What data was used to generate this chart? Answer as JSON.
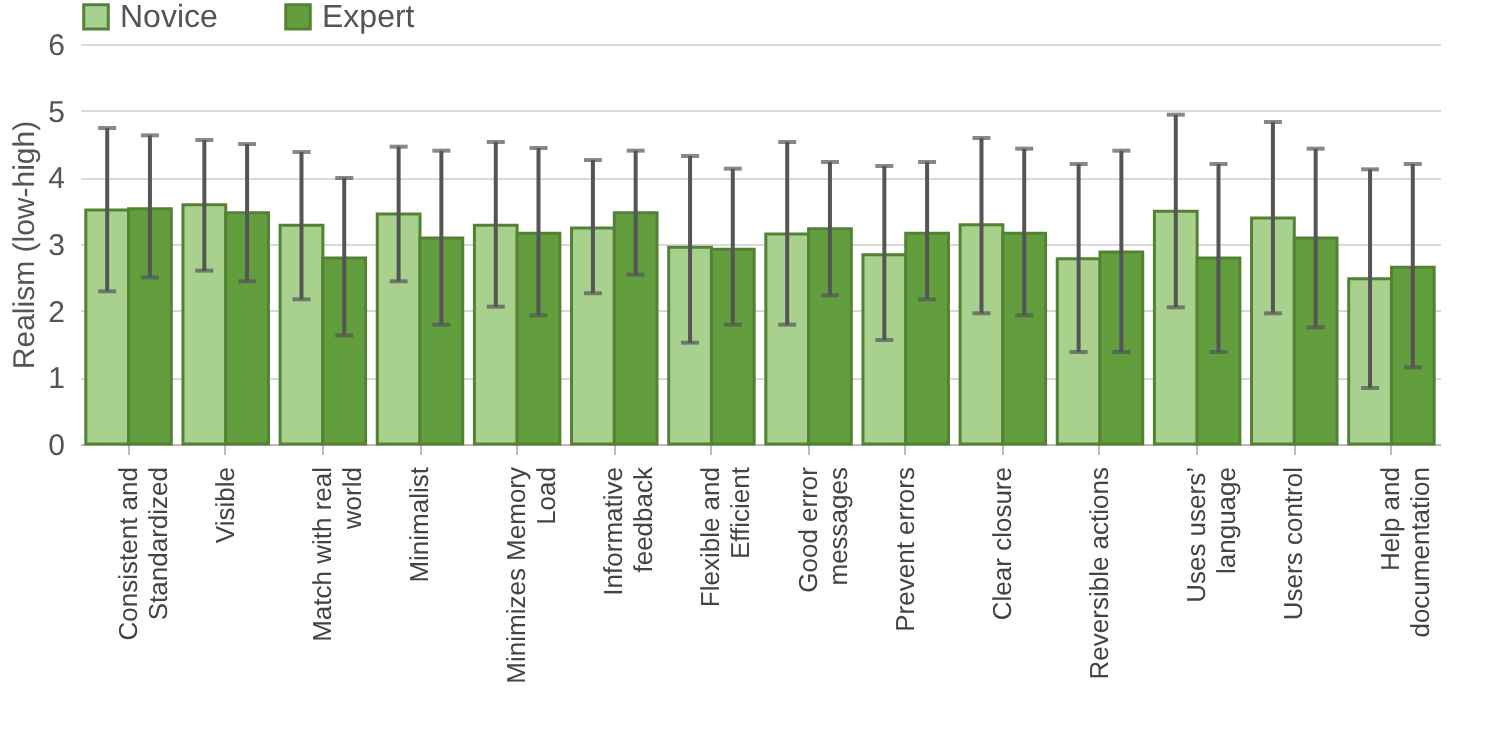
{
  "chart_data": {
    "type": "bar",
    "ylabel": "Realism (low-high)",
    "categories": [
      "Consistent and Standardized",
      "Visible",
      "Match with real world",
      "Minimalist",
      "Minimizes Memory Load",
      "Informative feedback",
      "Flexible and Efficient",
      "Good error messages",
      "Prevent errors",
      "Clear closure",
      "Reversible actions",
      "Uses users’ language",
      "Users control",
      "Help and documentation"
    ],
    "series": [
      {
        "name": "Novice",
        "color": "#a9d18e",
        "values": [
          3.51,
          3.59,
          3.28,
          3.45,
          3.28,
          3.24,
          2.95,
          3.15,
          2.84,
          3.29,
          2.78,
          3.49,
          3.39,
          2.48
        ],
        "errors": [
          [
            2.29,
            4.74
          ],
          [
            2.6,
            4.56
          ],
          [
            2.17,
            4.38
          ],
          [
            2.44,
            4.46
          ],
          [
            2.06,
            4.53
          ],
          [
            2.26,
            4.26
          ],
          [
            1.52,
            4.32
          ],
          [
            1.79,
            4.53
          ],
          [
            1.56,
            4.17
          ],
          [
            1.96,
            4.59
          ],
          [
            1.38,
            4.2
          ],
          [
            2.05,
            4.94
          ],
          [
            1.96,
            4.83
          ],
          [
            0.84,
            4.12
          ]
        ]
      },
      {
        "name": "Expert",
        "color": "#629d3e",
        "values": [
          3.53,
          3.47,
          2.79,
          3.09,
          3.16,
          3.47,
          2.92,
          3.23,
          3.16,
          3.16,
          2.88,
          2.79,
          3.09,
          2.65
        ],
        "errors": [
          [
            2.5,
            4.63
          ],
          [
            2.44,
            4.5
          ],
          [
            1.63,
            3.99
          ],
          [
            1.79,
            4.4
          ],
          [
            1.93,
            4.44
          ],
          [
            2.54,
            4.4
          ],
          [
            1.79,
            4.13
          ],
          [
            2.23,
            4.23
          ],
          [
            2.17,
            4.23
          ],
          [
            1.93,
            4.43
          ],
          [
            1.38,
            4.4
          ],
          [
            1.38,
            4.2
          ],
          [
            1.75,
            4.43
          ],
          [
            1.15,
            4.2
          ]
        ]
      }
    ],
    "ylim": [
      0,
      6
    ],
    "yticks": [
      0,
      1,
      2,
      3,
      4,
      5,
      6
    ],
    "grid": "y",
    "legend": "top"
  }
}
